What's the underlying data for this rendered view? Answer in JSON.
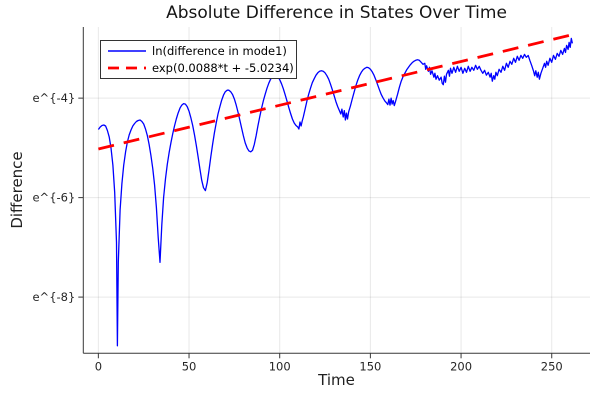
{
  "chart_data": {
    "type": "line",
    "title": "Absolute Difference in States Over Time",
    "xlabel": "Time",
    "ylabel": "Difference",
    "xlim": [
      -8.3,
      271.1
    ],
    "ylim": [
      -9.13,
      -2.57
    ],
    "grid": true,
    "legend_position": "top-left",
    "x_ticks": {
      "values": [
        0,
        50,
        100,
        150,
        200,
        250
      ],
      "labels": [
        "0",
        "50",
        "100",
        "150",
        "200",
        "250"
      ]
    },
    "y_ticks": {
      "values": [
        -4,
        -6,
        -8
      ],
      "labels": [
        "e^{-4}",
        "e^{-6}",
        "e^{-8}"
      ]
    },
    "colors": {
      "grid": "rgba(0,0,0,0.09)",
      "spine": "#383838",
      "series_blue": "#0000ff",
      "series_red": "#ff0000"
    },
    "series": [
      {
        "series_id": "difference-line",
        "name": "ln(difference in mode1)",
        "color": "#0000ff",
        "style": "solid",
        "width": 1.3,
        "points": [
          [
            0,
            -4.63
          ],
          [
            1,
            -4.58
          ],
          [
            2,
            -4.55
          ],
          [
            3,
            -4.54
          ],
          [
            4,
            -4.56
          ],
          [
            5,
            -4.65
          ],
          [
            6,
            -4.78
          ],
          [
            7,
            -5.0
          ],
          [
            8,
            -5.35
          ],
          [
            9,
            -5.9
          ],
          [
            10,
            -6.9
          ],
          [
            10.5,
            -8.98
          ],
          [
            11,
            -7.3
          ],
          [
            12,
            -6.25
          ],
          [
            13,
            -5.72
          ],
          [
            14,
            -5.35
          ],
          [
            15,
            -5.08
          ],
          [
            16,
            -4.88
          ],
          [
            17,
            -4.74
          ],
          [
            18,
            -4.64
          ],
          [
            19,
            -4.56
          ],
          [
            20,
            -4.51
          ],
          [
            21,
            -4.47
          ],
          [
            22,
            -4.45
          ],
          [
            23,
            -4.44
          ],
          [
            24,
            -4.47
          ],
          [
            25,
            -4.52
          ],
          [
            26,
            -4.62
          ],
          [
            27,
            -4.75
          ],
          [
            28,
            -4.93
          ],
          [
            29,
            -5.15
          ],
          [
            30,
            -5.42
          ],
          [
            31,
            -5.75
          ],
          [
            32,
            -6.2
          ],
          [
            33,
            -6.8
          ],
          [
            34,
            -7.3
          ],
          [
            35,
            -6.55
          ],
          [
            36,
            -6.0
          ],
          [
            37,
            -5.62
          ],
          [
            38,
            -5.33
          ],
          [
            39,
            -5.1
          ],
          [
            40,
            -4.9
          ],
          [
            41,
            -4.72
          ],
          [
            42,
            -4.56
          ],
          [
            43,
            -4.42
          ],
          [
            44,
            -4.3
          ],
          [
            45,
            -4.2
          ],
          [
            46,
            -4.14
          ],
          [
            47,
            -4.11
          ],
          [
            48,
            -4.12
          ],
          [
            49,
            -4.17
          ],
          [
            50,
            -4.26
          ],
          [
            51,
            -4.39
          ],
          [
            52,
            -4.55
          ],
          [
            53,
            -4.74
          ],
          [
            54,
            -4.95
          ],
          [
            55,
            -5.18
          ],
          [
            56,
            -5.42
          ],
          [
            57,
            -5.65
          ],
          [
            58,
            -5.8
          ],
          [
            59,
            -5.86
          ],
          [
            60,
            -5.7
          ],
          [
            61,
            -5.45
          ],
          [
            62,
            -5.18
          ],
          [
            63,
            -4.93
          ],
          [
            64,
            -4.7
          ],
          [
            65,
            -4.5
          ],
          [
            66,
            -4.32
          ],
          [
            67,
            -4.17
          ],
          [
            68,
            -4.04
          ],
          [
            69,
            -3.94
          ],
          [
            70,
            -3.87
          ],
          [
            71,
            -3.84
          ],
          [
            72,
            -3.84
          ],
          [
            73,
            -3.87
          ],
          [
            74,
            -3.93
          ],
          [
            75,
            -4.02
          ],
          [
            76,
            -4.14
          ],
          [
            77,
            -4.28
          ],
          [
            78,
            -4.44
          ],
          [
            79,
            -4.6
          ],
          [
            80,
            -4.76
          ],
          [
            81,
            -4.9
          ],
          [
            82,
            -5.0
          ],
          [
            83,
            -5.06
          ],
          [
            84,
            -5.08
          ],
          [
            85,
            -5.05
          ],
          [
            86,
            -4.93
          ],
          [
            87,
            -4.76
          ],
          [
            88,
            -4.56
          ],
          [
            89,
            -4.37
          ],
          [
            90,
            -4.2
          ],
          [
            91,
            -4.05
          ],
          [
            92,
            -3.92
          ],
          [
            93,
            -3.8
          ],
          [
            94,
            -3.7
          ],
          [
            95,
            -3.62
          ],
          [
            96,
            -3.57
          ],
          [
            97,
            -3.54
          ],
          [
            98,
            -3.54
          ],
          [
            99,
            -3.57
          ],
          [
            100,
            -3.63
          ],
          [
            101,
            -3.71
          ],
          [
            102,
            -3.81
          ],
          [
            103,
            -3.93
          ],
          [
            104,
            -4.06
          ],
          [
            105,
            -4.19
          ],
          [
            106,
            -4.31
          ],
          [
            107,
            -4.42
          ],
          [
            108,
            -4.5
          ],
          [
            109,
            -4.55
          ],
          [
            110,
            -4.58
          ],
          [
            110.6,
            -4.62
          ],
          [
            111.2,
            -4.48
          ],
          [
            111.8,
            -4.56
          ],
          [
            112.4,
            -4.46
          ],
          [
            113,
            -4.38
          ],
          [
            114,
            -4.22
          ],
          [
            115,
            -4.06
          ],
          [
            116,
            -3.92
          ],
          [
            117,
            -3.8
          ],
          [
            118,
            -3.69
          ],
          [
            119,
            -3.61
          ],
          [
            120,
            -3.54
          ],
          [
            121,
            -3.49
          ],
          [
            122,
            -3.46
          ],
          [
            123,
            -3.45
          ],
          [
            124,
            -3.46
          ],
          [
            125,
            -3.49
          ],
          [
            126,
            -3.55
          ],
          [
            127,
            -3.62
          ],
          [
            128,
            -3.72
          ],
          [
            129,
            -3.83
          ],
          [
            130,
            -3.95
          ],
          [
            131,
            -4.07
          ],
          [
            132,
            -4.17
          ],
          [
            133,
            -4.26
          ],
          [
            133.7,
            -4.32
          ],
          [
            134.3,
            -4.22
          ],
          [
            135,
            -4.38
          ],
          [
            135.6,
            -4.25
          ],
          [
            136.2,
            -4.44
          ],
          [
            136.8,
            -4.3
          ],
          [
            137.4,
            -4.42
          ],
          [
            138,
            -4.28
          ],
          [
            139,
            -4.16
          ],
          [
            140,
            -4.02
          ],
          [
            141,
            -3.88
          ],
          [
            142,
            -3.75
          ],
          [
            143,
            -3.64
          ],
          [
            144,
            -3.55
          ],
          [
            145,
            -3.48
          ],
          [
            146,
            -3.43
          ],
          [
            147,
            -3.4
          ],
          [
            148,
            -3.38
          ],
          [
            149,
            -3.39
          ],
          [
            150,
            -3.42
          ],
          [
            151,
            -3.47
          ],
          [
            152,
            -3.54
          ],
          [
            153,
            -3.63
          ],
          [
            154,
            -3.73
          ],
          [
            155,
            -3.83
          ],
          [
            156,
            -3.93
          ],
          [
            157,
            -4.0
          ],
          [
            158,
            -4.06
          ],
          [
            159,
            -4.1
          ],
          [
            159.6,
            -4.13
          ],
          [
            160.2,
            -4.02
          ],
          [
            160.8,
            -4.14
          ],
          [
            161.4,
            -4.0
          ],
          [
            162,
            -4.12
          ],
          [
            162.6,
            -4.05
          ],
          [
            163.2,
            -4.15
          ],
          [
            164,
            -4.05
          ],
          [
            165,
            -3.92
          ],
          [
            166,
            -3.78
          ],
          [
            167,
            -3.66
          ],
          [
            168,
            -3.57
          ],
          [
            169,
            -3.5
          ],
          [
            170,
            -3.43
          ],
          [
            171,
            -3.38
          ],
          [
            172,
            -3.33
          ],
          [
            173,
            -3.29
          ],
          [
            174,
            -3.26
          ],
          [
            175,
            -3.24
          ],
          [
            176,
            -3.23
          ],
          [
            177,
            -3.24
          ],
          [
            178,
            -3.28
          ],
          [
            179,
            -3.32
          ],
          [
            180,
            -3.3
          ],
          [
            180.5,
            -3.42
          ],
          [
            181,
            -3.35
          ],
          [
            182,
            -3.46
          ],
          [
            182.6,
            -3.38
          ],
          [
            183.2,
            -3.52
          ],
          [
            184,
            -3.45
          ],
          [
            185,
            -3.58
          ],
          [
            185.6,
            -3.5
          ],
          [
            186.2,
            -3.62
          ],
          [
            187,
            -3.55
          ],
          [
            188,
            -3.64
          ],
          [
            189,
            -3.58
          ],
          [
            189.6,
            -3.7
          ],
          [
            190.2,
            -3.73
          ],
          [
            190.8,
            -3.56
          ],
          [
            191.4,
            -3.68
          ],
          [
            192,
            -3.52
          ],
          [
            193,
            -3.44
          ],
          [
            193.6,
            -3.56
          ],
          [
            194.2,
            -3.4
          ],
          [
            195,
            -3.5
          ],
          [
            196,
            -3.38
          ],
          [
            197,
            -3.48
          ],
          [
            198,
            -3.36
          ],
          [
            199,
            -3.46
          ],
          [
            200,
            -3.38
          ],
          [
            201,
            -3.5
          ],
          [
            202,
            -3.4
          ],
          [
            203,
            -3.48
          ],
          [
            204,
            -3.36
          ],
          [
            205,
            -3.46
          ],
          [
            206,
            -3.38
          ],
          [
            207,
            -3.44
          ],
          [
            208,
            -3.34
          ],
          [
            209,
            -3.42
          ],
          [
            210,
            -3.36
          ],
          [
            211,
            -3.44
          ],
          [
            212,
            -3.5
          ],
          [
            213,
            -3.44
          ],
          [
            214,
            -3.54
          ],
          [
            215,
            -3.48
          ],
          [
            216,
            -3.58
          ],
          [
            216.6,
            -3.5
          ],
          [
            217.2,
            -3.66
          ],
          [
            218,
            -3.55
          ],
          [
            218.6,
            -3.62
          ],
          [
            219.2,
            -3.48
          ],
          [
            220,
            -3.55
          ],
          [
            221,
            -3.42
          ],
          [
            222,
            -3.48
          ],
          [
            223,
            -3.36
          ],
          [
            224,
            -3.44
          ],
          [
            225,
            -3.3
          ],
          [
            226,
            -3.38
          ],
          [
            227,
            -3.26
          ],
          [
            228,
            -3.32
          ],
          [
            229,
            -3.2
          ],
          [
            230,
            -3.28
          ],
          [
            231,
            -3.16
          ],
          [
            232,
            -3.24
          ],
          [
            233,
            -3.14
          ],
          [
            234,
            -3.2
          ],
          [
            235,
            -3.12
          ],
          [
            236,
            -3.18
          ],
          [
            237,
            -3.14
          ],
          [
            238,
            -3.25
          ],
          [
            239,
            -3.35
          ],
          [
            240,
            -3.46
          ],
          [
            240.6,
            -3.55
          ],
          [
            241.2,
            -3.45
          ],
          [
            242,
            -3.58
          ],
          [
            242.6,
            -3.48
          ],
          [
            243.2,
            -3.62
          ],
          [
            244,
            -3.5
          ],
          [
            245,
            -3.4
          ],
          [
            246,
            -3.3
          ],
          [
            246.6,
            -3.38
          ],
          [
            247.2,
            -3.26
          ],
          [
            248,
            -3.34
          ],
          [
            249,
            -3.2
          ],
          [
            250,
            -3.28
          ],
          [
            251,
            -3.14
          ],
          [
            252,
            -3.22
          ],
          [
            253,
            -3.1
          ],
          [
            254,
            -3.16
          ],
          [
            255,
            -3.04
          ],
          [
            256,
            -3.12
          ],
          [
            257,
            -3.0
          ],
          [
            257.6,
            -3.08
          ],
          [
            258.2,
            -2.94
          ],
          [
            259,
            -3.02
          ],
          [
            259.6,
            -2.88
          ],
          [
            260.2,
            -2.98
          ],
          [
            260.8,
            -2.8
          ],
          [
            261.4,
            -2.9
          ]
        ]
      },
      {
        "series_id": "fit-line",
        "name": "exp(0.0088*t + -5.0234)",
        "color": "#ff0000",
        "style": "dashed",
        "width": 2.8,
        "points": [
          [
            0,
            -5.0234
          ],
          [
            261,
            -2.7266
          ]
        ]
      }
    ]
  }
}
